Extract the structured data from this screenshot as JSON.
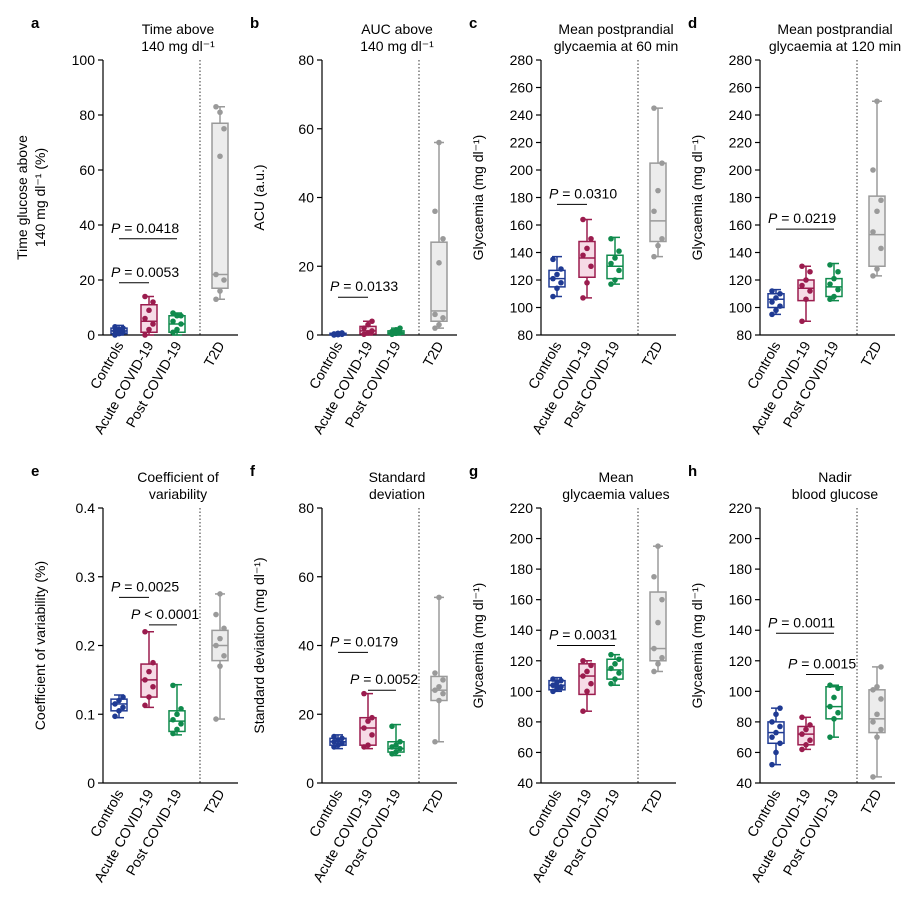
{
  "colors": {
    "controls": "#1f3a93",
    "acute": "#9b1c4e",
    "post": "#0f8a4c",
    "t2d": "#9a9a9a"
  },
  "chart_data": [
    {
      "id": "a",
      "type": "box",
      "letter": "a",
      "title": [
        "Time above",
        "140 mg dl⁻¹"
      ],
      "ylabel": [
        "Time glucose above",
        "140 mg dl⁻¹ (%)"
      ],
      "ylim": [
        0,
        100
      ],
      "yticks": [
        0,
        20,
        40,
        60,
        80,
        100
      ],
      "categories": [
        "Controls",
        "Acute COVID-19",
        "Post COVID-19",
        "T2D"
      ],
      "groups": [
        {
          "min": 0,
          "q1": 0.5,
          "median": 1.5,
          "q3": 2.5,
          "max": 3.5,
          "points": [
            0,
            0.5,
            1,
            1.5,
            2,
            2.5,
            3
          ]
        },
        {
          "min": 0,
          "q1": 1,
          "median": 5,
          "q3": 11,
          "max": 14,
          "points": [
            0,
            2,
            4,
            6,
            9,
            12,
            14
          ]
        },
        {
          "min": 0,
          "q1": 1,
          "median": 4,
          "q3": 7,
          "max": 8,
          "points": [
            1,
            2,
            4,
            5,
            7,
            7,
            8
          ]
        },
        {
          "min": 13,
          "q1": 17,
          "median": 22,
          "q3": 77,
          "max": 83,
          "points": [
            13,
            16,
            20,
            22,
            65,
            75,
            83,
            81
          ]
        }
      ],
      "annotations": [
        {
          "text": "P = 0.0418",
          "y": 35,
          "from": 0,
          "to": 2
        },
        {
          "text": "P = 0.0053",
          "y": 19,
          "from": 0,
          "to": 1
        }
      ]
    },
    {
      "id": "b",
      "type": "box",
      "letter": "b",
      "title": [
        "AUC above",
        "140 mg dl⁻¹"
      ],
      "ylabel": [
        "ACU (a.u.)"
      ],
      "ylim": [
        0,
        80
      ],
      "yticks": [
        0,
        20,
        40,
        60,
        80
      ],
      "categories": [
        "Controls",
        "Acute COVID-19",
        "Post COVID-19",
        "T2D"
      ],
      "groups": [
        {
          "min": 0,
          "q1": 0,
          "median": 0.2,
          "q3": 0.5,
          "max": 0.8,
          "points": [
            0,
            0.1,
            0.2,
            0.3,
            0.5,
            0.6
          ]
        },
        {
          "min": 0,
          "q1": 0.3,
          "median": 1.2,
          "q3": 2.5,
          "max": 4,
          "points": [
            0.2,
            0.6,
            1.2,
            2,
            3,
            4
          ]
        },
        {
          "min": 0,
          "q1": 0.2,
          "median": 0.6,
          "q3": 1.2,
          "max": 2,
          "points": [
            0.2,
            0.5,
            0.8,
            1,
            1.5,
            2
          ]
        },
        {
          "min": 2,
          "q1": 4,
          "median": 7,
          "q3": 27,
          "max": 56,
          "points": [
            2,
            3,
            5,
            6,
            21,
            28,
            36,
            56
          ]
        }
      ],
      "annotations": [
        {
          "text": "P = 0.0133",
          "y": 11,
          "from": 0,
          "to": 1
        }
      ]
    },
    {
      "id": "c",
      "type": "box",
      "letter": "c",
      "title": [
        "Mean postprandial",
        "glycaemia at 60 min"
      ],
      "ylabel": [
        "Glycaemia (mg dl⁻¹)"
      ],
      "ylim": [
        80,
        280
      ],
      "yticks": [
        80,
        100,
        120,
        140,
        160,
        180,
        200,
        220,
        240,
        260,
        280
      ],
      "categories": [
        "Controls",
        "Acute COVID-19",
        "Post COVID-19",
        "T2D"
      ],
      "groups": [
        {
          "min": 108,
          "q1": 115,
          "median": 121,
          "q3": 127,
          "max": 137,
          "points": [
            108,
            114,
            118,
            121,
            124,
            128,
            135
          ]
        },
        {
          "min": 107,
          "q1": 122,
          "median": 136,
          "q3": 148,
          "max": 164,
          "points": [
            107,
            118,
            130,
            138,
            143,
            150,
            164
          ]
        },
        {
          "min": 117,
          "q1": 121,
          "median": 130,
          "q3": 138,
          "max": 151,
          "points": [
            117,
            120,
            127,
            132,
            136,
            141,
            150
          ]
        },
        {
          "min": 137,
          "q1": 148,
          "median": 163,
          "q3": 205,
          "max": 245,
          "points": [
            137,
            145,
            150,
            170,
            185,
            205,
            245
          ]
        }
      ],
      "annotations": [
        {
          "text": "P = 0.0310",
          "y": 175,
          "from": 0,
          "to": 1
        }
      ]
    },
    {
      "id": "d",
      "type": "box",
      "letter": "d",
      "title": [
        "Mean postprandial",
        "glycaemia at 120 min"
      ],
      "ylabel": [
        "Glycaemia (mg dl⁻¹)"
      ],
      "ylim": [
        80,
        280
      ],
      "yticks": [
        80,
        100,
        120,
        140,
        160,
        180,
        200,
        220,
        240,
        260,
        280
      ],
      "categories": [
        "Controls",
        "Acute COVID-19",
        "Post COVID-19",
        "T2D"
      ],
      "groups": [
        {
          "min": 95,
          "q1": 100,
          "median": 106,
          "q3": 110,
          "max": 113,
          "points": [
            95,
            98,
            101,
            104,
            107,
            110,
            112
          ]
        },
        {
          "min": 90,
          "q1": 105,
          "median": 114,
          "q3": 120,
          "max": 130,
          "points": [
            90,
            106,
            112,
            116,
            120,
            126,
            130
          ]
        },
        {
          "min": 105,
          "q1": 108,
          "median": 115,
          "q3": 121,
          "max": 132,
          "points": [
            106,
            108,
            113,
            117,
            121,
            126,
            131
          ]
        },
        {
          "min": 123,
          "q1": 130,
          "median": 153,
          "q3": 181,
          "max": 250,
          "points": [
            123,
            128,
            143,
            155,
            170,
            178,
            200,
            250
          ]
        }
      ],
      "annotations": [
        {
          "text": "P = 0.0219",
          "y": 157,
          "from": 0,
          "to": 2
        }
      ]
    },
    {
      "id": "e",
      "type": "box",
      "letter": "e",
      "title": [
        "Coefficient of",
        "variability"
      ],
      "ylabel": [
        "Coefficient of variability (%)"
      ],
      "ylim": [
        0,
        0.4
      ],
      "yticks": [
        0,
        0.1,
        0.2,
        0.3,
        0.4
      ],
      "categories": [
        "Controls",
        "Acute COVID-19",
        "Post COVID-19",
        "T2D"
      ],
      "groups": [
        {
          "min": 0.095,
          "q1": 0.105,
          "median": 0.115,
          "q3": 0.122,
          "max": 0.128,
          "points": [
            0.097,
            0.105,
            0.11,
            0.115,
            0.12,
            0.125
          ]
        },
        {
          "min": 0.11,
          "q1": 0.125,
          "median": 0.15,
          "q3": 0.173,
          "max": 0.22,
          "points": [
            0.113,
            0.125,
            0.14,
            0.15,
            0.162,
            0.175,
            0.22
          ]
        },
        {
          "min": 0.07,
          "q1": 0.075,
          "median": 0.09,
          "q3": 0.105,
          "max": 0.143,
          "points": [
            0.072,
            0.078,
            0.086,
            0.092,
            0.1,
            0.108,
            0.142
          ]
        },
        {
          "min": 0.093,
          "q1": 0.178,
          "median": 0.2,
          "q3": 0.222,
          "max": 0.275,
          "points": [
            0.093,
            0.17,
            0.185,
            0.2,
            0.21,
            0.225,
            0.245,
            0.275
          ]
        }
      ],
      "annotations": [
        {
          "text": "P = 0.0025",
          "y": 0.27,
          "from": 0,
          "to": 1
        },
        {
          "text": "P < 0.0001",
          "y": 0.23,
          "from": 1,
          "to": 2
        }
      ]
    },
    {
      "id": "f",
      "type": "box",
      "letter": "f",
      "title": [
        "Standard",
        "deviation"
      ],
      "ylabel": [
        "Standard deviation (mg dl⁻¹)"
      ],
      "ylim": [
        0,
        80
      ],
      "yticks": [
        0,
        20,
        40,
        60,
        80
      ],
      "categories": [
        "Controls",
        "Acute COVID-19",
        "Post COVID-19",
        "T2D"
      ],
      "groups": [
        {
          "min": 10,
          "q1": 11,
          "median": 12,
          "q3": 13,
          "max": 14,
          "points": [
            10.5,
            11,
            11.5,
            12,
            12.5,
            13,
            13.5
          ]
        },
        {
          "min": 10,
          "q1": 11,
          "median": 16,
          "q3": 19,
          "max": 26,
          "points": [
            10.5,
            11,
            14,
            16,
            18,
            19,
            26
          ]
        },
        {
          "min": 8,
          "q1": 9,
          "median": 10,
          "q3": 12,
          "max": 17,
          "points": [
            8.5,
            9,
            10,
            10.5,
            11,
            12,
            16.5
          ]
        },
        {
          "min": 12,
          "q1": 24,
          "median": 27,
          "q3": 31,
          "max": 54,
          "points": [
            12,
            24,
            26,
            27,
            28,
            30,
            32,
            54
          ]
        }
      ],
      "annotations": [
        {
          "text": "P = 0.0179",
          "y": 38,
          "from": 0,
          "to": 1
        },
        {
          "text": "P = 0.0052",
          "y": 27,
          "from": 1,
          "to": 2
        }
      ]
    },
    {
      "id": "g",
      "type": "box",
      "letter": "g",
      "title": [
        "Mean",
        "glycaemia values"
      ],
      "ylabel": [
        "Glycaemia (mg dl⁻¹)"
      ],
      "ylim": [
        40,
        220
      ],
      "yticks": [
        40,
        60,
        80,
        100,
        120,
        140,
        160,
        180,
        200,
        220
      ],
      "categories": [
        "Controls",
        "Acute COVID-19",
        "Post COVID-19",
        "T2D"
      ],
      "groups": [
        {
          "min": 100,
          "q1": 101,
          "median": 104,
          "q3": 107,
          "max": 109,
          "points": [
            100,
            102,
            103,
            104,
            106,
            107,
            108
          ]
        },
        {
          "min": 87,
          "q1": 98,
          "median": 110,
          "q3": 118,
          "max": 120,
          "points": [
            87,
            100,
            105,
            110,
            113,
            117,
            120
          ]
        },
        {
          "min": 104,
          "q1": 108,
          "median": 114,
          "q3": 121,
          "max": 124,
          "points": [
            105,
            108,
            112,
            115,
            118,
            121,
            124
          ]
        },
        {
          "min": 113,
          "q1": 120,
          "median": 128,
          "q3": 165,
          "max": 195,
          "points": [
            113,
            118,
            122,
            128,
            145,
            160,
            175,
            195
          ]
        }
      ],
      "annotations": [
        {
          "text": "P = 0.0031",
          "y": 130,
          "from": 0,
          "to": 2
        }
      ]
    },
    {
      "id": "h",
      "type": "box",
      "letter": "h",
      "title": [
        "Nadir",
        "blood glucose"
      ],
      "ylabel": [
        "Glycaemia (mg dl⁻¹)"
      ],
      "ylim": [
        40,
        220
      ],
      "yticks": [
        40,
        60,
        80,
        100,
        120,
        140,
        160,
        180,
        200,
        220
      ],
      "categories": [
        "Controls",
        "Acute COVID-19",
        "Post COVID-19",
        "T2D"
      ],
      "groups": [
        {
          "min": 52,
          "q1": 66,
          "median": 73,
          "q3": 80,
          "max": 89,
          "points": [
            52,
            60,
            66,
            70,
            73,
            77,
            80,
            85,
            89
          ]
        },
        {
          "min": 62,
          "q1": 65,
          "median": 72,
          "q3": 77,
          "max": 83,
          "points": [
            62,
            65,
            68,
            72,
            75,
            78,
            83
          ]
        },
        {
          "min": 70,
          "q1": 82,
          "median": 90,
          "q3": 103,
          "max": 104,
          "points": [
            70,
            82,
            86,
            90,
            96,
            102,
            104
          ]
        },
        {
          "min": 44,
          "q1": 73,
          "median": 82,
          "q3": 101,
          "max": 116,
          "points": [
            44,
            70,
            75,
            80,
            85,
            95,
            101,
            103,
            116
          ]
        }
      ],
      "annotations": [
        {
          "text": "P = 0.0011",
          "y": 138,
          "from": 0,
          "to": 2
        },
        {
          "text": "P = 0.0015",
          "y": 111,
          "from": 1,
          "to": 2
        }
      ]
    }
  ]
}
